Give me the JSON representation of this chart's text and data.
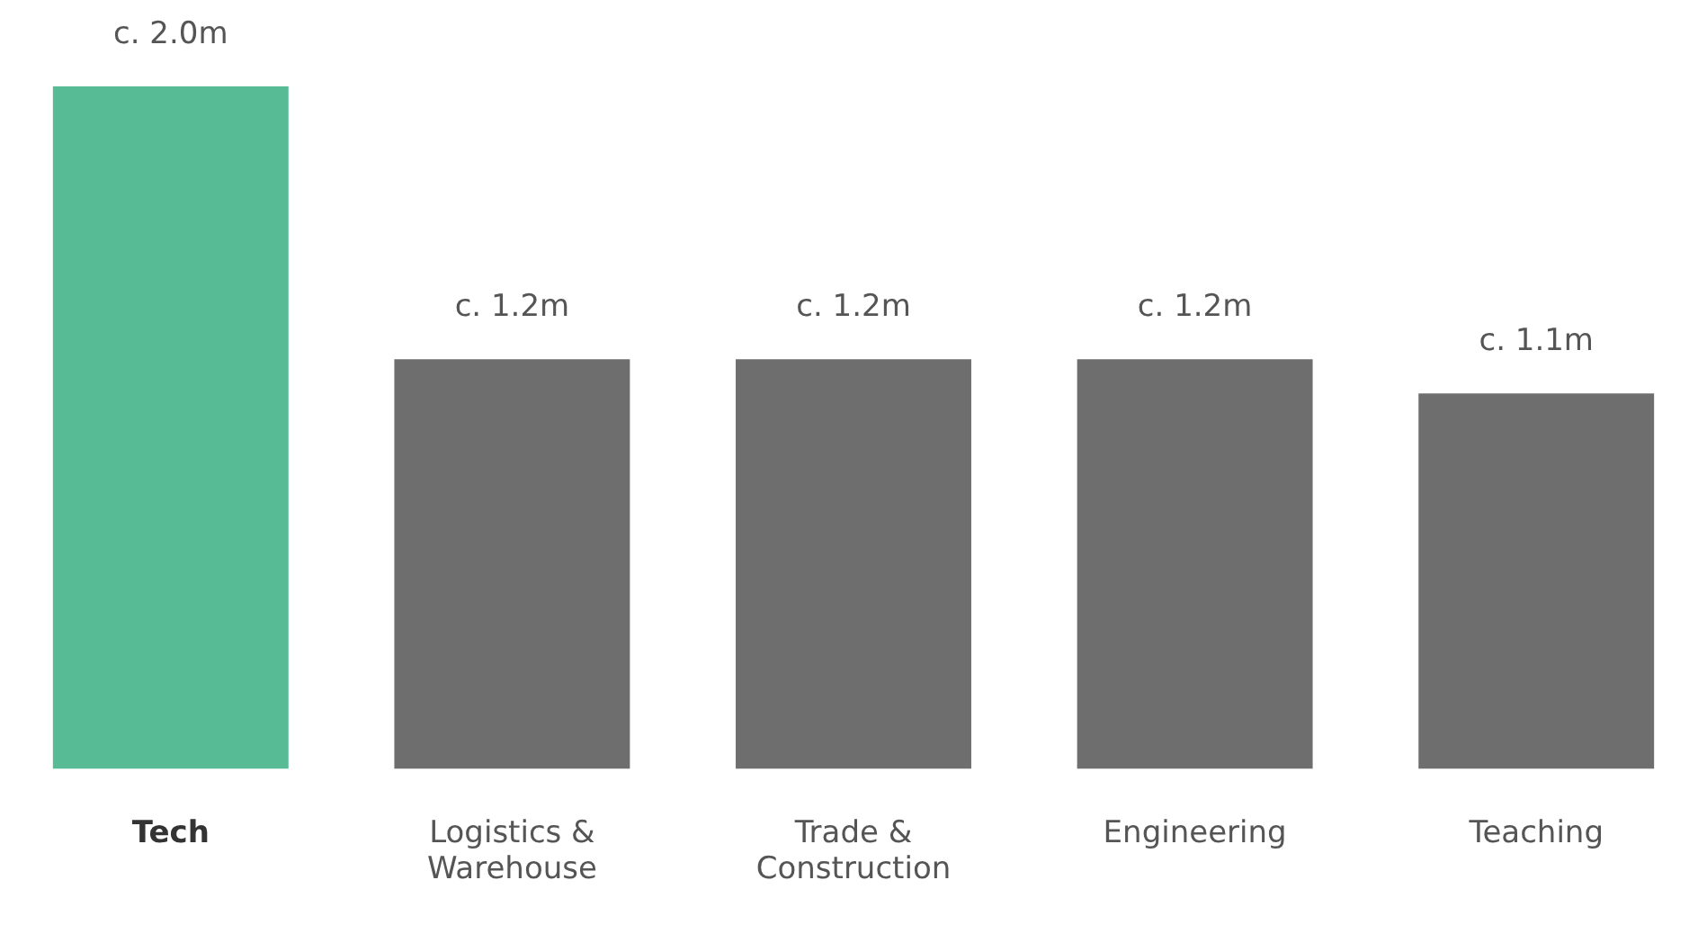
{
  "chart_data": {
    "type": "bar",
    "categories": [
      "Tech",
      "Logistics & Warehouse",
      "Trade & Construction",
      "Engineering",
      "Teaching"
    ],
    "values": [
      2.0,
      1.2,
      1.2,
      1.2,
      1.1
    ],
    "colors": [
      "#57bb96",
      "#6e6e6e",
      "#6e6e6e",
      "#6e6e6e",
      "#6e6e6e"
    ],
    "value_labels": [
      "c. 2.0m",
      "c. 1.2m",
      "c. 1.2m",
      "c. 1.2m",
      "c. 1.1m"
    ],
    "grid": false,
    "legend": false
  }
}
